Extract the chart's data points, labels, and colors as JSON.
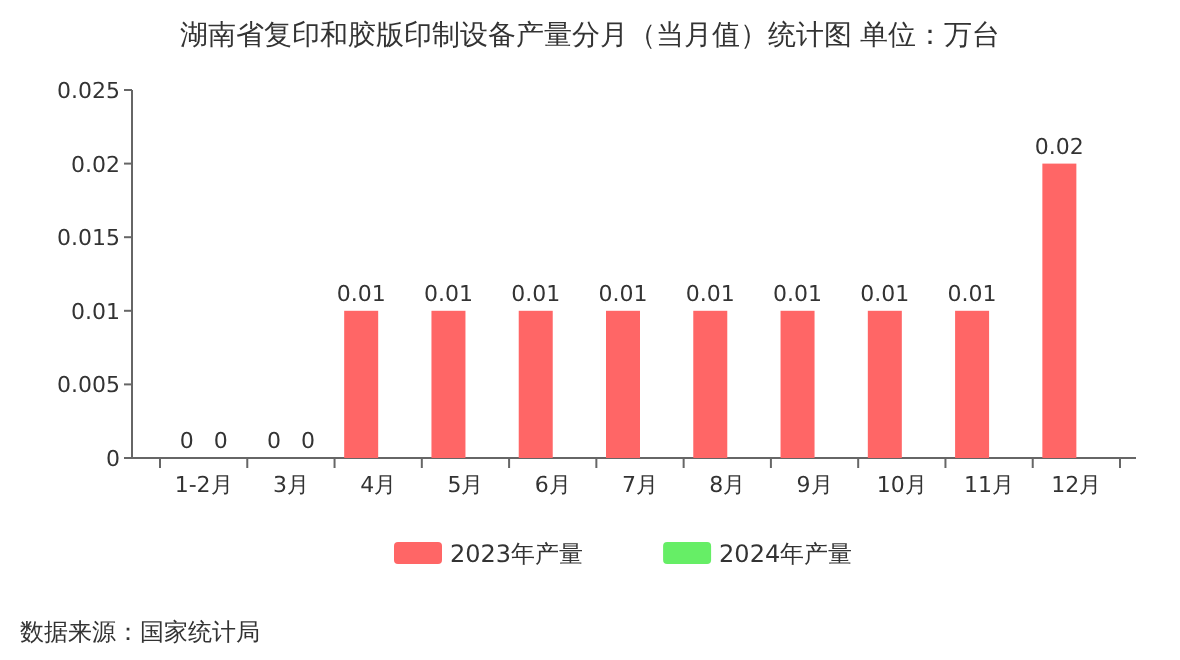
{
  "chart_data": {
    "type": "bar",
    "title": "湖南省复印和胶版印制设备产量分月（当月值）统计图  单位：万台",
    "categories": [
      "1-2月",
      "3月",
      "4月",
      "5月",
      "6月",
      "7月",
      "8月",
      "9月",
      "10月",
      "11月",
      "12月"
    ],
    "series": [
      {
        "name": "2023年产量",
        "color": "#ff6666",
        "values": [
          0,
          0,
          0.01,
          0.01,
          0.01,
          0.01,
          0.01,
          0.01,
          0.01,
          0.01,
          0.02
        ]
      },
      {
        "name": "2024年产量",
        "color": "#66ee66",
        "values": [
          0,
          0,
          null,
          null,
          null,
          null,
          null,
          null,
          null,
          null,
          null
        ]
      }
    ],
    "ylim": [
      0,
      0.025
    ],
    "yticks": [
      0,
      0.005,
      0.01,
      0.015,
      0.02,
      0.025
    ],
    "data_labels": true,
    "legend": "bottom",
    "annotations": [
      "数据来源：国家统计局"
    ]
  }
}
